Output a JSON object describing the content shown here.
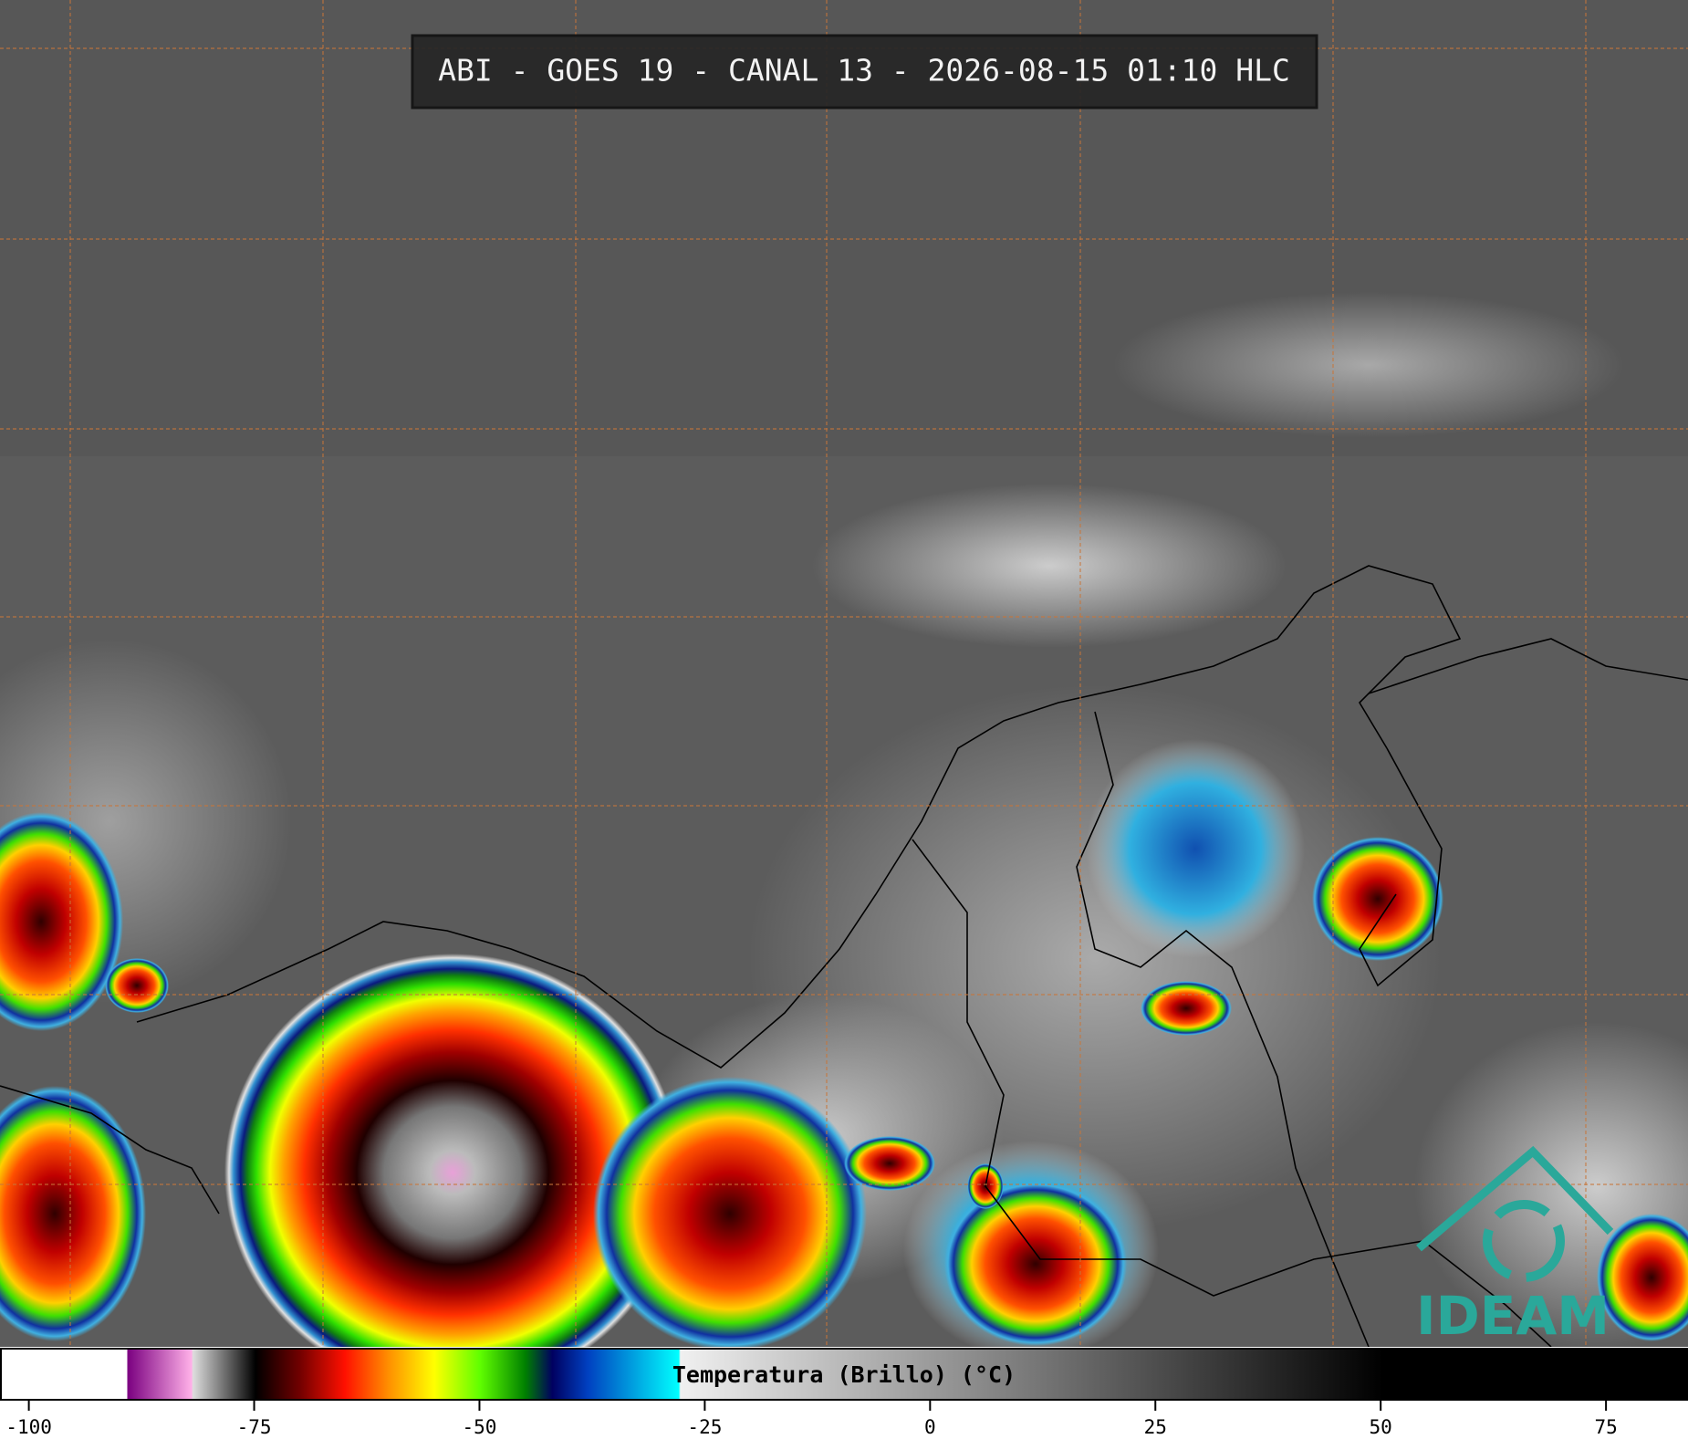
{
  "header": {
    "title": "ABI - GOES 19 - CANAL 13 - 2026-08-15 01:10 HLC"
  },
  "colorbar": {
    "label": "Temperatura (Brillo) (°C)",
    "lim": [
      -103.2,
      84.1
    ],
    "ticks": [
      -100,
      -75,
      -50,
      -25,
      0,
      25,
      50,
      75
    ]
  },
  "logo": {
    "text": "IDEAM"
  }
}
